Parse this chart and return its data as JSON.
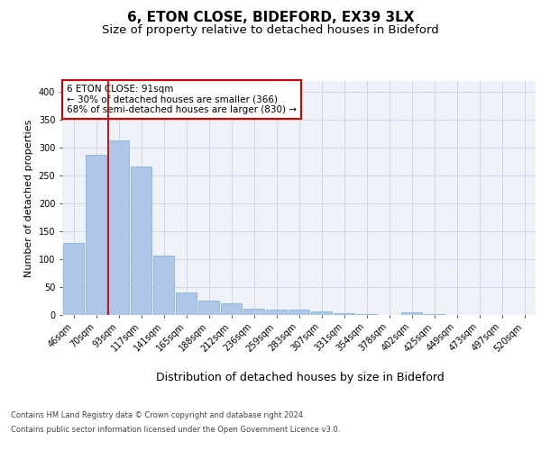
{
  "title1": "6, ETON CLOSE, BIDEFORD, EX39 3LX",
  "title2": "Size of property relative to detached houses in Bideford",
  "xlabel": "Distribution of detached houses by size in Bideford",
  "ylabel": "Number of detached properties",
  "bar_labels": [
    "46sqm",
    "70sqm",
    "93sqm",
    "117sqm",
    "141sqm",
    "165sqm",
    "188sqm",
    "212sqm",
    "236sqm",
    "259sqm",
    "283sqm",
    "307sqm",
    "331sqm",
    "354sqm",
    "378sqm",
    "402sqm",
    "425sqm",
    "449sqm",
    "473sqm",
    "497sqm",
    "520sqm"
  ],
  "bar_values": [
    130,
    287,
    313,
    266,
    107,
    41,
    26,
    21,
    11,
    10,
    9,
    7,
    4,
    1,
    0,
    5,
    1,
    0,
    0,
    0,
    0
  ],
  "bar_color": "#aec6e8",
  "bar_edge_color": "#7aadd4",
  "grid_color": "#d0d8e8",
  "background_color": "#eef2f8",
  "annotation_text": "6 ETON CLOSE: 91sqm\n← 30% of detached houses are smaller (366)\n68% of semi-detached houses are larger (830) →",
  "annotation_box_color": "#ffffff",
  "annotation_border_color": "#cc0000",
  "redline_x": 2,
  "redline_color": "#cc0000",
  "ylim": [
    0,
    420
  ],
  "yticks": [
    0,
    50,
    100,
    150,
    200,
    250,
    300,
    350,
    400
  ],
  "footer1": "Contains HM Land Registry data © Crown copyright and database right 2024.",
  "footer2": "Contains public sector information licensed under the Open Government Licence v3.0.",
  "title1_fontsize": 11,
  "title2_fontsize": 9.5,
  "tick_fontsize": 7,
  "ylabel_fontsize": 8,
  "xlabel_fontsize": 9
}
